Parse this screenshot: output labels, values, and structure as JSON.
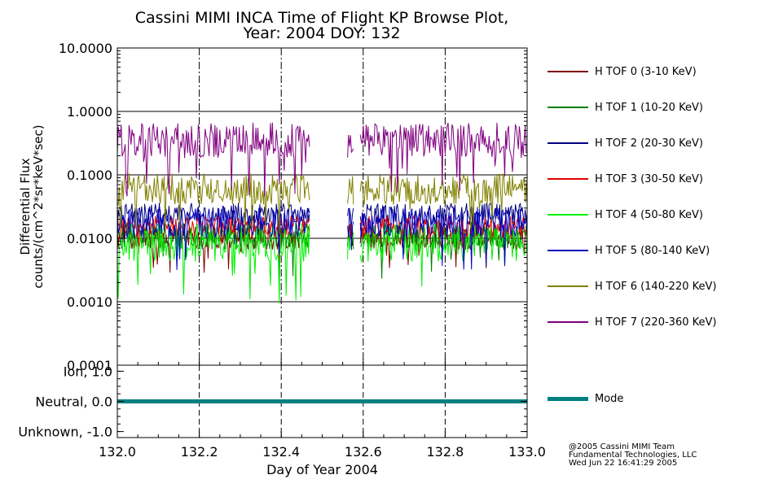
{
  "title": {
    "line1": "Cassini MIMI INCA Time of Flight KP Browse Plot,",
    "line2": "Year: 2004 DOY: 132"
  },
  "credits": {
    "line1": "@2005 Cassini MIMI Team",
    "line2": "Fundamental Technologies, LLC",
    "line3": "Wed Jun 22 16:41:29 2005"
  },
  "chart_data": [
    {
      "type": "line",
      "yscale": "log",
      "ylabel_line1": "Differential Flux",
      "ylabel_line2": "counts/(cm^2*sr*keV*sec)",
      "xlim": [
        132.0,
        133.0
      ],
      "ylim": [
        0.0001,
        10.0
      ],
      "yticks": [
        10.0,
        1.0,
        0.1,
        0.01,
        0.001,
        0.0001
      ],
      "ytick_labels": [
        "10.0000",
        "1.0000",
        "0.1000",
        "0.0100",
        "0.0010",
        "0.0001"
      ],
      "hgrid_at": [
        1.0,
        0.1,
        0.01,
        0.001
      ],
      "vgrid_at": [
        132.2,
        132.4,
        132.6,
        132.8
      ],
      "gaps": [
        [
          132.47,
          132.56
        ],
        [
          132.577,
          132.592
        ]
      ],
      "series": [
        {
          "name": "H TOF 0 (3-10 KeV)",
          "color": "#800000",
          "base": 0.01,
          "amp": 0.18,
          "seed": 11
        },
        {
          "name": "H TOF 1 (10-20 KeV)",
          "color": "#008000",
          "base": 0.011,
          "amp": 0.22,
          "seed": 23
        },
        {
          "name": "H TOF 2 (20-30 KeV)",
          "color": "#000080",
          "base": 0.024,
          "amp": 0.18,
          "seed": 37
        },
        {
          "name": "H TOF 3 (30-50 KeV)",
          "color": "#e00000",
          "base": 0.015,
          "amp": 0.18,
          "seed": 41
        },
        {
          "name": "H TOF 4 (50-80 KeV)",
          "color": "#00f000",
          "base": 0.0085,
          "amp": 0.3,
          "seed": 53
        },
        {
          "name": "H TOF 5 (80-140 KeV)",
          "color": "#0000c0",
          "base": 0.018,
          "amp": 0.25,
          "seed": 67
        },
        {
          "name": "H TOF 6 (140-220 KeV)",
          "color": "#808000",
          "base": 0.06,
          "amp": 0.25,
          "seed": 71
        },
        {
          "name": "H TOF 7 (220-360 KeV)",
          "color": "#800080",
          "base": 0.35,
          "amp": 0.28,
          "seed": 89
        }
      ]
    },
    {
      "type": "line",
      "ylim": [
        -1.2,
        1.2
      ],
      "yticks": [
        1.0,
        0.0,
        -1.0
      ],
      "ytick_labels": [
        "Ion, 1.0",
        "Neutral, 0.0",
        "Unknown, -1.0"
      ],
      "xlabel": "Day of Year 2004",
      "xticks": [
        132.0,
        132.2,
        132.4,
        132.6,
        132.8,
        133.0
      ],
      "xtick_labels": [
        "132.0",
        "132.2",
        "132.4",
        "132.6",
        "132.8",
        "133.0"
      ],
      "series": [
        {
          "name": "Mode",
          "color": "#008080",
          "x": [
            132.0,
            133.0
          ],
          "values": [
            0.0,
            0.0
          ]
        }
      ]
    }
  ]
}
